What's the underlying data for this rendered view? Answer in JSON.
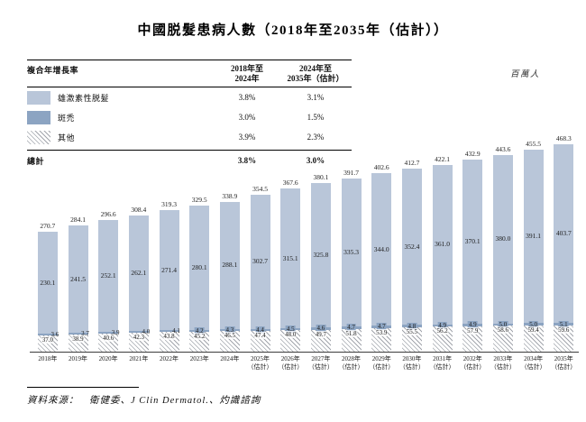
{
  "title": "中國脱髮患病人數（2018年至2035年（估計））",
  "unit_label": "百萬人",
  "cagr_table": {
    "header_label": "複合年增長率",
    "col1_header": "2018年至\n2024年",
    "col2_header": "2024年至\n2035年（估計）",
    "rows": [
      {
        "label": "雄激素性脱髮",
        "swatch": "light-blue-square",
        "cagr_2018_2024": "3.8%",
        "cagr_2024_2035": "3.1%"
      },
      {
        "label": "斑禿",
        "swatch": "dark-blue-square",
        "cagr_2018_2024": "3.0%",
        "cagr_2024_2035": "1.5%"
      },
      {
        "label": "其他",
        "swatch": "diagonal-hatch-square",
        "cagr_2018_2024": "3.9%",
        "cagr_2024_2035": "2.3%"
      }
    ],
    "total_row": {
      "label": "總計",
      "cagr_2018_2024": "3.8%",
      "cagr_2024_2035": "3.0%"
    }
  },
  "chart_data": {
    "type": "bar",
    "stacked": true,
    "title": "中國脱髮患病人數（2018年至2035年（估計））",
    "ylabel": "百萬人",
    "xlabel": "",
    "grid": false,
    "legend_position": "top-left-table",
    "ylim": [
      0,
      480
    ],
    "categories": [
      "2018年",
      "2019年",
      "2020年",
      "2021年",
      "2022年",
      "2023年",
      "2024年",
      "2025年\n（估計）",
      "2026年\n（估計）",
      "2027年\n（估計）",
      "2028年\n（估計）",
      "2029年\n（估計）",
      "2030年\n（估計）",
      "2031年\n（估計）",
      "2032年\n（估計）",
      "2033年\n（估計）",
      "2034年\n（估計）",
      "2035年\n（估計）"
    ],
    "series": [
      {
        "name": "雄激素性脱髮",
        "color": "#b9c6d9",
        "values": [
          230.1,
          241.5,
          252.1,
          262.1,
          271.4,
          280.1,
          288.1,
          302.7,
          315.1,
          325.8,
          335.3,
          344.0,
          352.4,
          361.0,
          370.1,
          380.0,
          391.1,
          403.7
        ]
      },
      {
        "name": "斑禿",
        "color": "#8ca4c2",
        "values": [
          3.6,
          3.7,
          3.9,
          4.0,
          4.1,
          4.2,
          4.3,
          4.4,
          4.5,
          4.6,
          4.7,
          4.7,
          4.8,
          4.9,
          4.9,
          5.0,
          5.0,
          5.1
        ]
      },
      {
        "name": "其他",
        "color": "diagonal-hatch",
        "values": [
          37.0,
          38.9,
          40.6,
          42.3,
          43.8,
          45.2,
          46.5,
          47.4,
          48.0,
          49.7,
          51.8,
          53.9,
          55.5,
          56.2,
          57.9,
          58.6,
          59.4,
          59.6
        ]
      }
    ],
    "totals": [
      270.7,
      284.1,
      296.6,
      308.4,
      319.3,
      329.5,
      338.9,
      354.5,
      367.6,
      380.1,
      391.7,
      402.6,
      412.7,
      422.1,
      432.9,
      443.6,
      455.5,
      468.3
    ]
  },
  "source": "資料來源：　衛健委、J Clin Dermatol.、灼識諮詢"
}
